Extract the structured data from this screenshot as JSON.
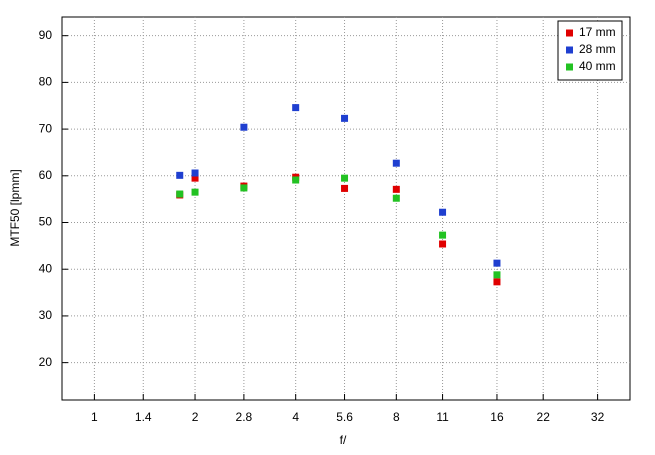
{
  "chart_data": {
    "type": "scatter",
    "x_label": "f/",
    "y_label": "MTF50 [lpmm]",
    "xscale": "log",
    "xlim": [
      0.8,
      40
    ],
    "ylim": [
      12,
      94
    ],
    "xticks": [
      1,
      1.4,
      2,
      2.8,
      4,
      5.6,
      8,
      11,
      16,
      22,
      32
    ],
    "yticks": [
      20,
      30,
      40,
      50,
      60,
      70,
      80,
      90
    ],
    "grid": true,
    "legend": "upper right",
    "x": [
      1.8,
      2,
      2.8,
      4,
      5.6,
      8,
      11,
      16
    ],
    "series": [
      {
        "name": "17 mm",
        "color": "#e00000",
        "values": [
          55.9,
          59.5,
          57.8,
          59.7,
          57.3,
          57.1,
          45.4,
          37.3
        ]
      },
      {
        "name": "28 mm",
        "color": "#1f3fd0",
        "values": [
          60.1,
          60.6,
          70.4,
          74.6,
          72.3,
          62.7,
          52.2,
          41.3
        ]
      },
      {
        "name": "40 mm",
        "color": "#22c222",
        "values": [
          56.1,
          56.5,
          57.4,
          59.1,
          59.5,
          55.2,
          47.3,
          38.8
        ]
      }
    ]
  }
}
